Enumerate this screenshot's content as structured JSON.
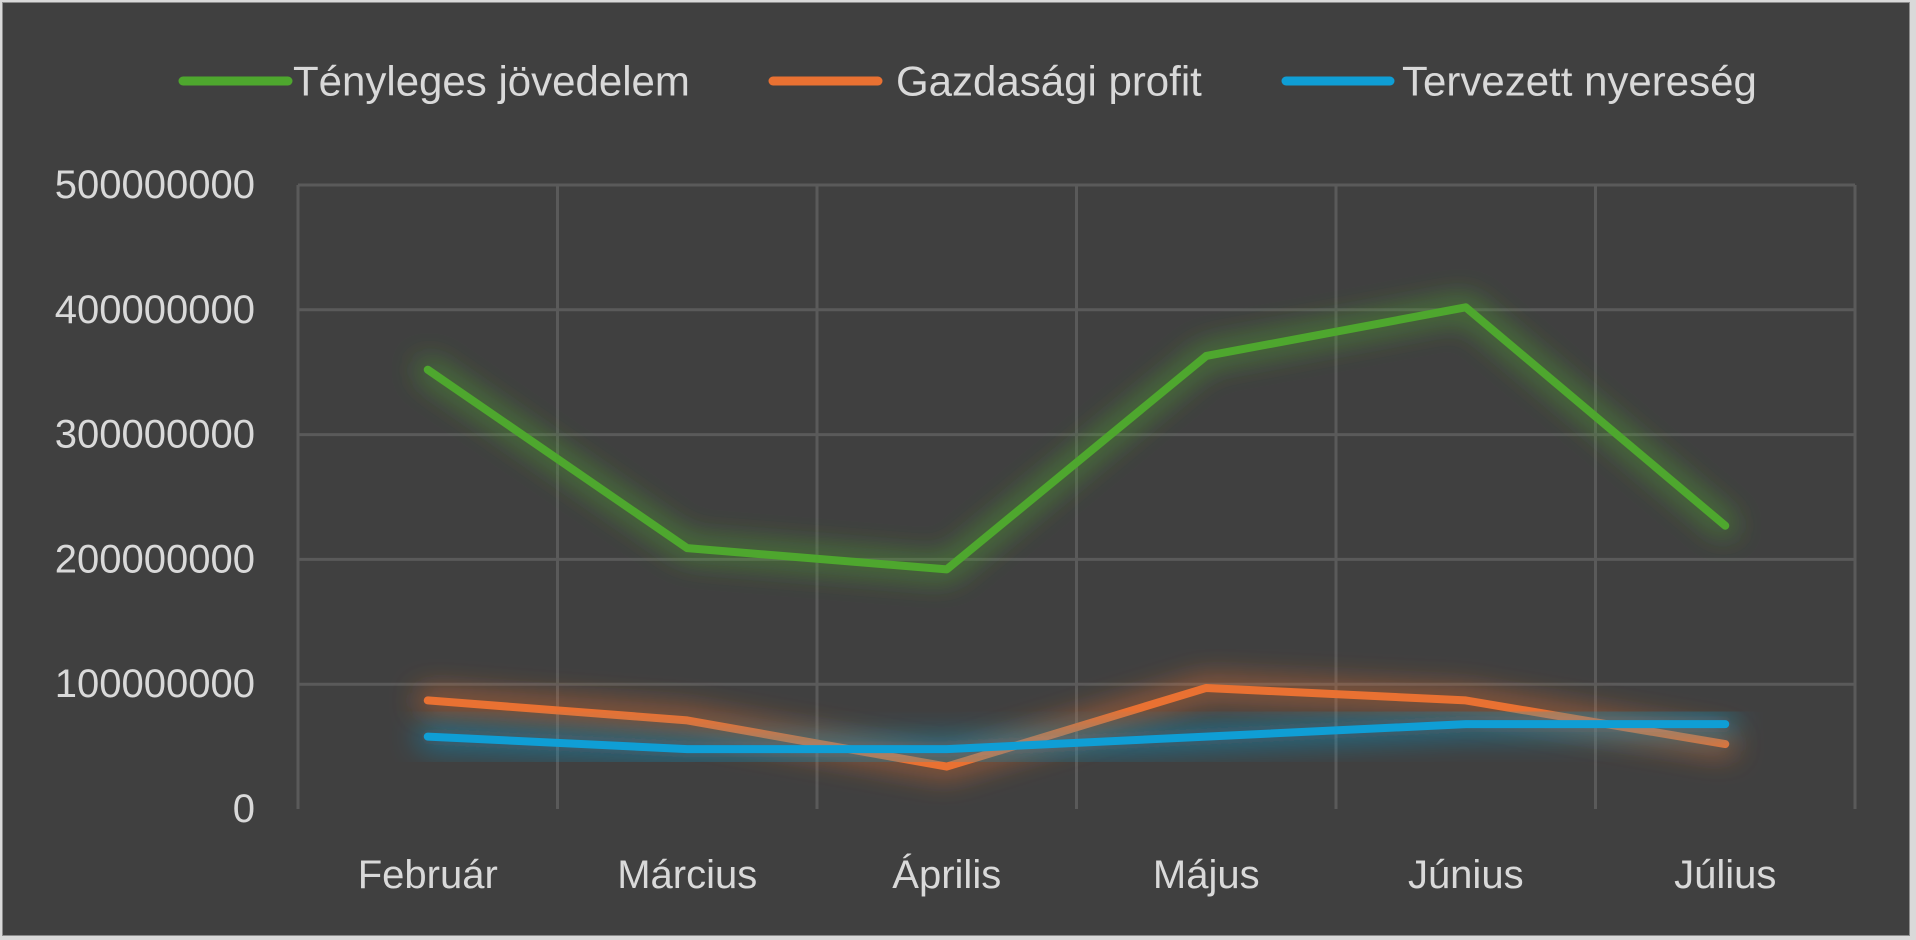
{
  "chart_data": {
    "type": "line",
    "title": "",
    "xlabel": "",
    "ylabel": "",
    "categories": [
      "Február",
      "Március",
      "Április",
      "Május",
      "Június",
      "Július"
    ],
    "ylim": [
      0,
      500000000
    ],
    "yticks": [
      0,
      100000000,
      200000000,
      300000000,
      400000000,
      500000000
    ],
    "ytick_labels": [
      "0",
      "100000000",
      "200000000",
      "300000000",
      "400000000",
      "500000000"
    ],
    "grid": true,
    "legend_position": "top",
    "series": [
      {
        "name": "Tényleges jövedelem",
        "color": "#4ea72e",
        "values": [
          352000000,
          209000000,
          192000000,
          363000000,
          402000000,
          227000000
        ]
      },
      {
        "name": "Gazdasági profit",
        "color": "#e97132",
        "values": [
          87000000,
          71000000,
          34000000,
          97000000,
          87000000,
          52000000
        ]
      },
      {
        "name": "Tervezett nyereség",
        "color": "#0f9ed5",
        "values": [
          58000000,
          48000000,
          48000000,
          58000000,
          68000000,
          68000000
        ]
      }
    ]
  }
}
